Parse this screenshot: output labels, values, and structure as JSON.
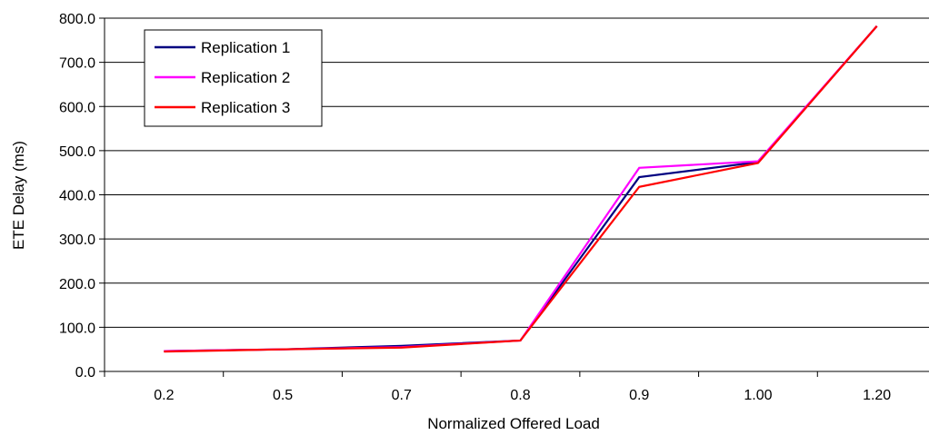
{
  "chart_data": {
    "type": "line",
    "title": "",
    "xlabel": "Normalized Offered Load",
    "ylabel": "ETE Delay (ms)",
    "categories": [
      "0.2",
      "0.5",
      "0.7",
      "0.8",
      "0.9",
      "1.00",
      "1.20"
    ],
    "ylim": [
      0,
      800
    ],
    "yticks": [
      "0.0",
      "100.0",
      "200.0",
      "300.0",
      "400.0",
      "500.0",
      "600.0",
      "700.0",
      "800.0"
    ],
    "grid": "horizontal",
    "legend_position": "top-left",
    "series": [
      {
        "name": "Replication 1",
        "color": "#000080",
        "values": [
          46,
          50,
          58,
          70,
          440,
          474,
          782
        ]
      },
      {
        "name": "Replication 2",
        "color": "#ff00ff",
        "values": [
          46,
          50,
          55,
          70,
          461,
          476,
          782
        ]
      },
      {
        "name": "Replication 3",
        "color": "#ff0000",
        "values": [
          45,
          50,
          54,
          70,
          418,
          472,
          782
        ]
      }
    ]
  }
}
